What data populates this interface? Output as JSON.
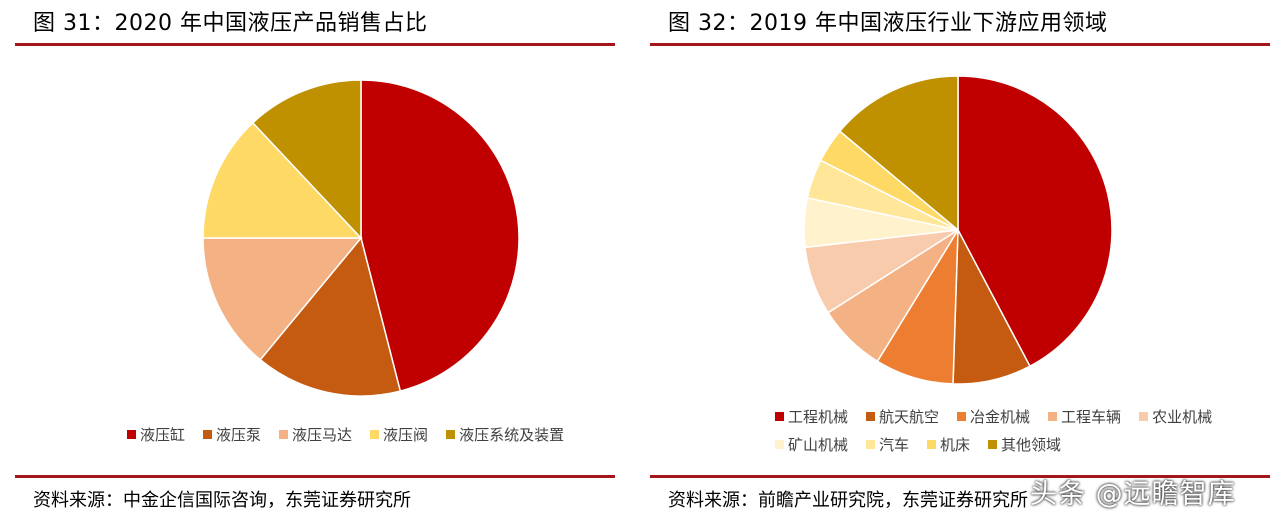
{
  "chart_data": [
    {
      "type": "pie",
      "title": "图 31：2020 年中国液压产品销售占比",
      "source": "资料来源：中金企信国际咨询，东莞证券研究所",
      "legend": "bottom",
      "series": [
        {
          "name": "液压缸",
          "value": 46,
          "color": "#c00000"
        },
        {
          "name": "液压泵",
          "value": 15,
          "color": "#c55a11"
        },
        {
          "name": "液压马达",
          "value": 14,
          "color": "#f4b183"
        },
        {
          "name": "液压阀",
          "value": 13,
          "color": "#ffd966"
        },
        {
          "name": "液压系统及装置",
          "value": 12,
          "color": "#bf9000"
        }
      ]
    },
    {
      "type": "pie",
      "title": "图 32：2019 年中国液压行业下游应用领域",
      "source": "资料来源：前瞻产业研究院，东莞证券研究所",
      "legend": "bottom",
      "series": [
        {
          "name": "工程机械",
          "value": 41,
          "color": "#c00000"
        },
        {
          "name": "航天航空",
          "value": 8,
          "color": "#c55a11"
        },
        {
          "name": "冶金机械",
          "value": 8,
          "color": "#ed7d31"
        },
        {
          "name": "工程车辆",
          "value": 7,
          "color": "#f4b183"
        },
        {
          "name": "农业机械",
          "value": 7,
          "color": "#f8cbad"
        },
        {
          "name": "矿山机械",
          "value": 5,
          "color": "#fff2cc"
        },
        {
          "name": "汽车",
          "value": 4,
          "color": "#ffe699"
        },
        {
          "name": "机床",
          "value": 3.5,
          "color": "#ffd966"
        },
        {
          "name": "其他领域",
          "value": 13.5,
          "color": "#bf9000"
        }
      ]
    }
  ],
  "watermark": "头条 @远瞻智库"
}
